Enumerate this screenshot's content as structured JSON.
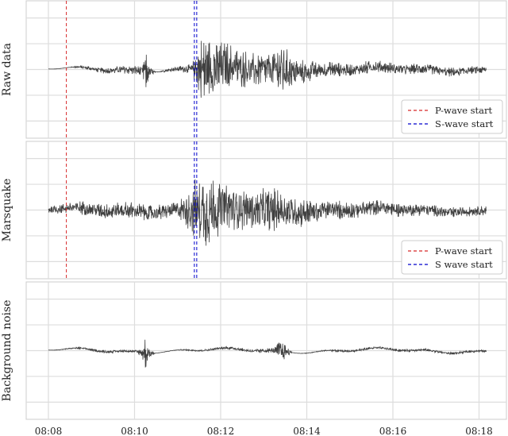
{
  "chart_data": [
    {
      "type": "line",
      "ylabel": "Raw data",
      "x_range": [
        "08:08",
        "08:18"
      ],
      "ylim": [
        -2,
        2
      ],
      "grid": true,
      "legend": {
        "placement": "bottom-right",
        "entries": [
          {
            "label": "P-wave start",
            "color": "#d62728",
            "style": "dashed"
          },
          {
            "label": "S-wave start",
            "color": "#0000cc",
            "style": "dashed"
          }
        ]
      },
      "markers": [
        {
          "label": "P-wave start",
          "time": "08:08:25"
        },
        {
          "label": "S-wave start",
          "time": "08:11:25"
        }
      ],
      "series": [
        {
          "color": "#404040",
          "samples": [
            [
              "08:08:00",
              0.0
            ],
            [
              "08:08:25",
              0.0
            ],
            [
              "08:09:30",
              0.15
            ],
            [
              "08:10:10",
              0.2
            ],
            [
              "08:10:15",
              0.9
            ],
            [
              "08:10:20",
              0.3
            ],
            [
              "08:10:30",
              0.0
            ],
            [
              "08:11:20",
              0.2
            ],
            [
              "08:11:35",
              1.4
            ],
            [
              "08:12:00",
              1.1
            ],
            [
              "08:12:30",
              0.75
            ],
            [
              "08:13:10",
              0.6
            ],
            [
              "08:13:25",
              1.1
            ],
            [
              "08:13:40",
              0.55
            ],
            [
              "08:14:30",
              0.3
            ],
            [
              "08:15:30",
              0.25
            ],
            [
              "08:16:30",
              0.2
            ],
            [
              "08:18:10",
              0.15
            ]
          ]
        }
      ]
    },
    {
      "type": "line",
      "ylabel": "Marsquake",
      "x_range": [
        "08:08",
        "08:18"
      ],
      "ylim": [
        -2,
        2
      ],
      "grid": true,
      "legend": {
        "placement": "bottom-right",
        "entries": [
          {
            "label": "P-wave start",
            "color": "#d62728",
            "style": "dashed"
          },
          {
            "label": "S wave start",
            "color": "#0000cc",
            "style": "dashed"
          }
        ]
      },
      "markers": [
        {
          "label": "P-wave start",
          "time": "08:08:25"
        },
        {
          "label": "S-wave start",
          "time": "08:11:25"
        }
      ],
      "series": [
        {
          "color": "#404040",
          "samples": [
            [
              "08:08:00",
              0.15
            ],
            [
              "08:09:00",
              0.3
            ],
            [
              "08:10:00",
              0.35
            ],
            [
              "08:11:00",
              0.3
            ],
            [
              "08:11:25",
              1.2
            ],
            [
              "08:11:40",
              1.5
            ],
            [
              "08:12:00",
              1.0
            ],
            [
              "08:12:40",
              0.8
            ],
            [
              "08:13:20",
              0.85
            ],
            [
              "08:13:40",
              0.6
            ],
            [
              "08:14:30",
              0.4
            ],
            [
              "08:15:30",
              0.3
            ],
            [
              "08:16:30",
              0.25
            ],
            [
              "08:18:10",
              0.2
            ]
          ]
        }
      ]
    },
    {
      "type": "line",
      "ylabel": "Background noise",
      "x_range": [
        "08:08",
        "08:18"
      ],
      "ylim": [
        -2,
        2
      ],
      "grid": true,
      "series": [
        {
          "color": "#404040",
          "samples": [
            [
              "08:08:00",
              0.0
            ],
            [
              "08:09:00",
              0.05
            ],
            [
              "08:10:00",
              0.05
            ],
            [
              "08:10:10",
              0.15
            ],
            [
              "08:10:15",
              0.7
            ],
            [
              "08:10:20",
              0.2
            ],
            [
              "08:10:30",
              0.0
            ],
            [
              "08:12:00",
              0.05
            ],
            [
              "08:13:15",
              0.1
            ],
            [
              "08:13:20",
              0.5
            ],
            [
              "08:13:30",
              0.3
            ],
            [
              "08:13:40",
              0.0
            ],
            [
              "08:15:00",
              0.05
            ],
            [
              "08:16:30",
              0.05
            ],
            [
              "08:18:10",
              0.05
            ]
          ]
        }
      ]
    }
  ],
  "x_ticks": [
    "08:08",
    "08:10",
    "08:12",
    "08:14",
    "08:16",
    "08:18"
  ]
}
